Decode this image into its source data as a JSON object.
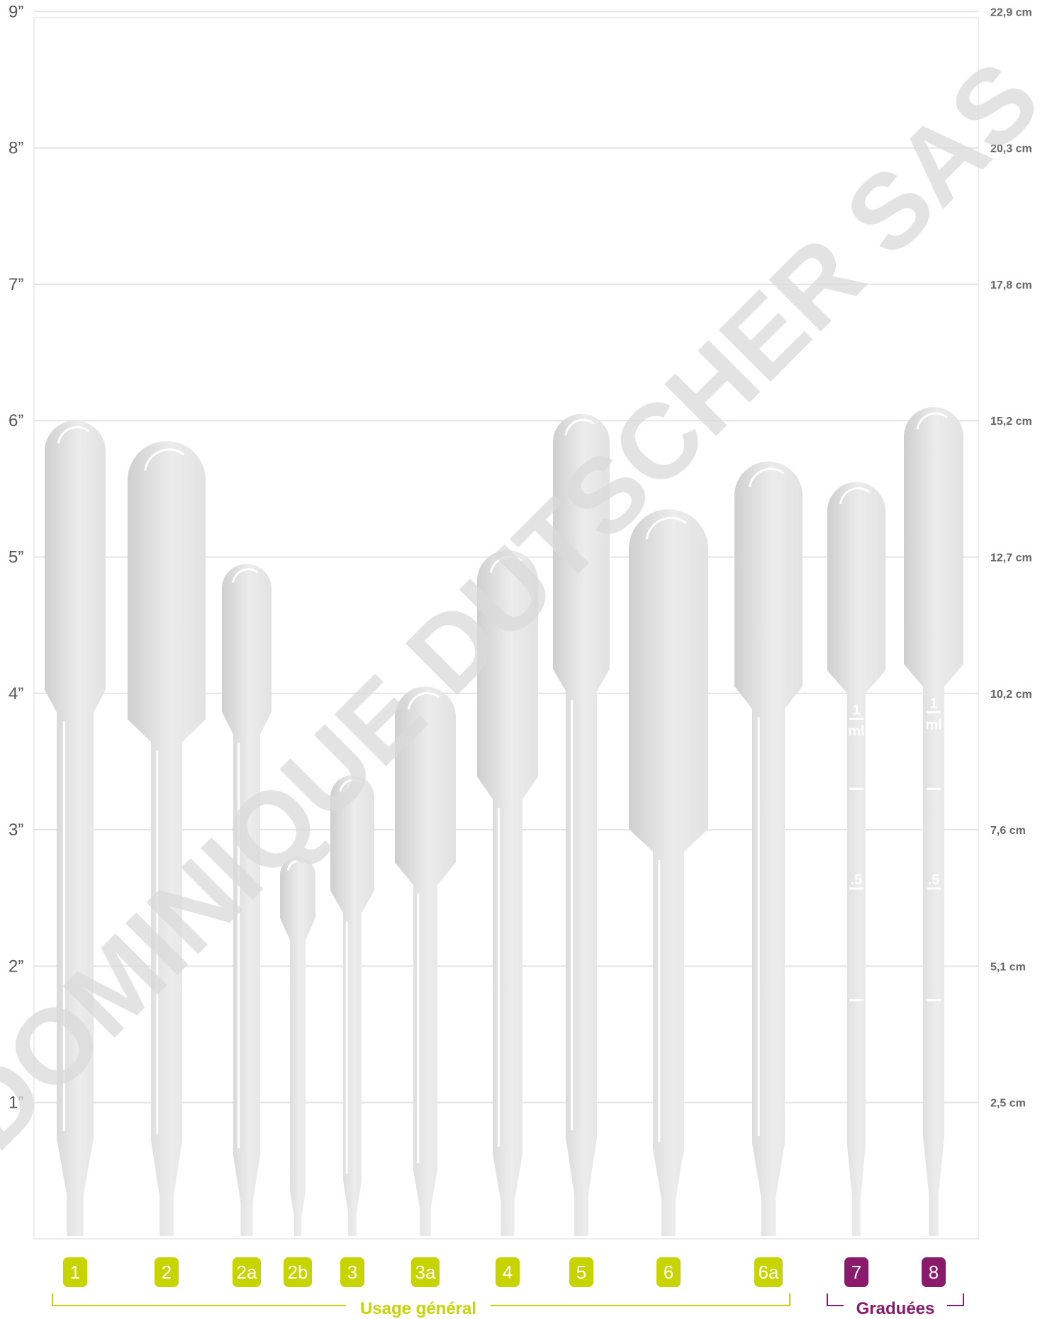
{
  "axis_left": {
    "unit": "inch",
    "ticks": [
      {
        "value": 1,
        "label": "1”"
      },
      {
        "value": 2,
        "label": "2”"
      },
      {
        "value": 3,
        "label": "3”"
      },
      {
        "value": 4,
        "label": "4”"
      },
      {
        "value": 5,
        "label": "5”"
      },
      {
        "value": 6,
        "label": "6”"
      },
      {
        "value": 7,
        "label": "7”"
      },
      {
        "value": 8,
        "label": "8”"
      },
      {
        "value": 9,
        "label": "9”"
      }
    ]
  },
  "axis_right": {
    "unit": "cm",
    "ticks": [
      {
        "value": 1,
        "label": "2,5 cm"
      },
      {
        "value": 2,
        "label": "5,1 cm"
      },
      {
        "value": 3,
        "label": "7,6 cm"
      },
      {
        "value": 4,
        "label": "10,2 cm"
      },
      {
        "value": 5,
        "label": "12,7 cm"
      },
      {
        "value": 6,
        "label": "15,2 cm"
      },
      {
        "value": 7,
        "label": "17,8 cm"
      },
      {
        "value": 8,
        "label": "20,3 cm"
      },
      {
        "value": 9,
        "label": "22,9 cm"
      }
    ]
  },
  "colors": {
    "general": "#c8d400",
    "graduated": "#8a1a6c",
    "grid": "#e4e4e4",
    "pipette_light": "#ececec",
    "pipette_dark": "#cfcfcf",
    "watermark": "#d9d9d9"
  },
  "pipettes": [
    {
      "label": "1",
      "group": "general",
      "length_in": 6.0
    },
    {
      "label": "2",
      "group": "general",
      "length_in": 5.85
    },
    {
      "label": "2a",
      "group": "general",
      "length_in": 4.95
    },
    {
      "label": "2b",
      "group": "general",
      "length_in": 2.8
    },
    {
      "label": "3",
      "group": "general",
      "length_in": 3.4
    },
    {
      "label": "3a",
      "group": "general",
      "length_in": 4.05
    },
    {
      "label": "4",
      "group": "general",
      "length_in": 5.05
    },
    {
      "label": "5",
      "group": "general",
      "length_in": 6.05
    },
    {
      "label": "6",
      "group": "general",
      "length_in": 5.35
    },
    {
      "label": "6a",
      "group": "general",
      "length_in": 5.7
    },
    {
      "label": "7",
      "group": "graduated",
      "length_in": 5.55
    },
    {
      "label": "8",
      "group": "graduated",
      "length_in": 6.1
    }
  ],
  "graduation_marks": {
    "top": "1",
    "unit": "ml",
    "half": ".5"
  },
  "groups": {
    "general": {
      "label": "Usage général"
    },
    "graduated": {
      "label": "Graduées"
    }
  },
  "watermark": "DOMINIQUE DUTSCHER SAS"
}
